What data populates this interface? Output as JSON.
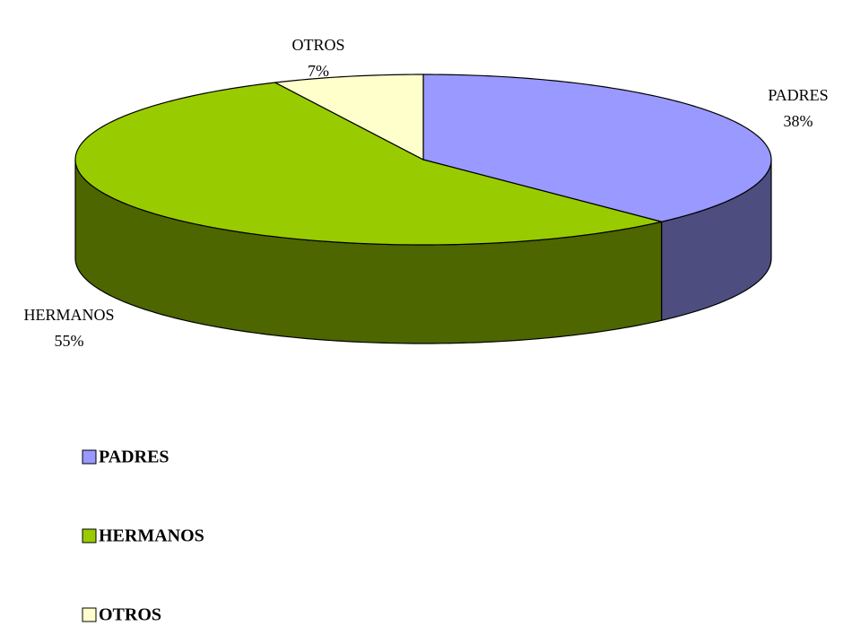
{
  "chart_data": {
    "type": "pie3d",
    "categories": [
      "PADRES",
      "HERMANOS",
      "OTROS"
    ],
    "values": [
      38,
      55,
      7
    ],
    "value_labels": [
      "38%",
      "55%",
      "7%"
    ],
    "colors": [
      "#9999ff",
      "#99cc00",
      "#ffffcc"
    ],
    "legend": "bottom-left"
  }
}
